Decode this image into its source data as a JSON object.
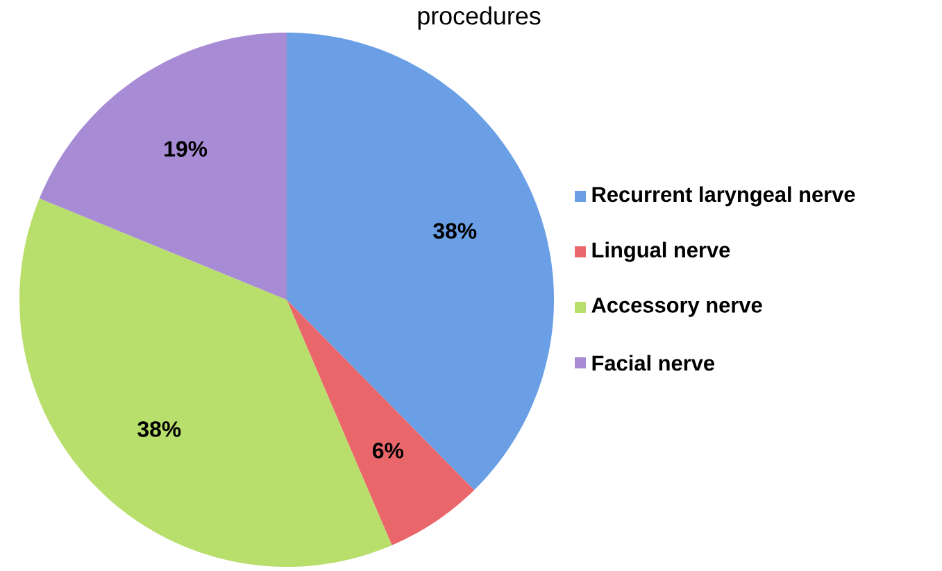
{
  "chart_data": {
    "type": "pie",
    "title": "procedures",
    "categories": [
      "Recurrent laryngeal nerve",
      "Lingual nerve",
      "Accessory nerve",
      "Facial nerve"
    ],
    "values": [
      38,
      6,
      38,
      19
    ],
    "value_labels": [
      "38%",
      "6%",
      "38%",
      "19%"
    ],
    "colors": [
      "#6a9fe6",
      "#e9676b",
      "#b8de6c",
      "#a88bd5"
    ],
    "legend": "right"
  }
}
